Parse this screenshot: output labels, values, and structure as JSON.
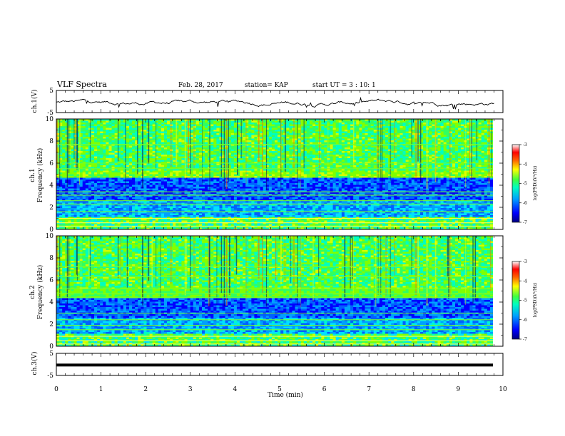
{
  "header": {
    "title": "VLF Spectra",
    "date": "Feb. 28, 2017",
    "station": "station= KAP",
    "start": "start UT =   3 : 10: 1"
  },
  "chart_data": [
    {
      "type": "line",
      "name": "ch.1 waveform",
      "ylabel": "ch.1(V)",
      "ylim": [
        -5,
        5
      ],
      "yticks": [
        "5",
        "-5"
      ],
      "x_range_min": [
        0,
        9.8
      ],
      "description_level": "fluctuating around -0.5 V"
    },
    {
      "type": "heatmap",
      "name": "ch.1 spectrogram",
      "ylabel": "ch.1\nFrequency (kHz)",
      "ylabel_lines": [
        "ch.1",
        "Frequency (kHz)"
      ],
      "ylim": [
        0,
        10
      ],
      "yticks": [
        "0",
        "2",
        "4",
        "6",
        "8",
        "10"
      ],
      "colorbar": {
        "label": "log(PSD)(V²/Hz)",
        "range": [
          -7,
          -3
        ],
        "ticks": [
          "-3",
          "-4",
          "-5",
          "-6",
          "-7"
        ]
      }
    },
    {
      "type": "heatmap",
      "name": "ch.2 spectrogram",
      "ylabel_lines": [
        "ch.2",
        "Frequency (kHz)"
      ],
      "ylim": [
        0,
        10
      ],
      "yticks": [
        "0",
        "2",
        "4",
        "6",
        "8",
        "10"
      ],
      "colorbar": {
        "label": "log(PSD)(V²/Hz)",
        "range": [
          -7,
          -3
        ],
        "ticks": [
          "-3",
          "-4",
          "-5",
          "-6",
          "-7"
        ]
      }
    },
    {
      "type": "line",
      "name": "ch.3 waveform",
      "ylabel": "ch.3(V)",
      "ylim": [
        -5,
        5
      ],
      "yticks": [
        "5",
        "-5"
      ],
      "level": -0.3
    }
  ],
  "xaxis": {
    "label": "Time  (min)",
    "ticks": [
      "0",
      "1",
      "2",
      "3",
      "4",
      "5",
      "6",
      "7",
      "8",
      "9",
      "10"
    ],
    "range": [
      0,
      10
    ]
  },
  "colors": {
    "bg": "#ffffff",
    "axis": "#000000",
    "colormap": [
      "#000080",
      "#0000ff",
      "#0080ff",
      "#00ffff",
      "#00ff80",
      "#80ff00",
      "#ffff00",
      "#ff8000",
      "#ff0000",
      "#ffffff"
    ]
  }
}
